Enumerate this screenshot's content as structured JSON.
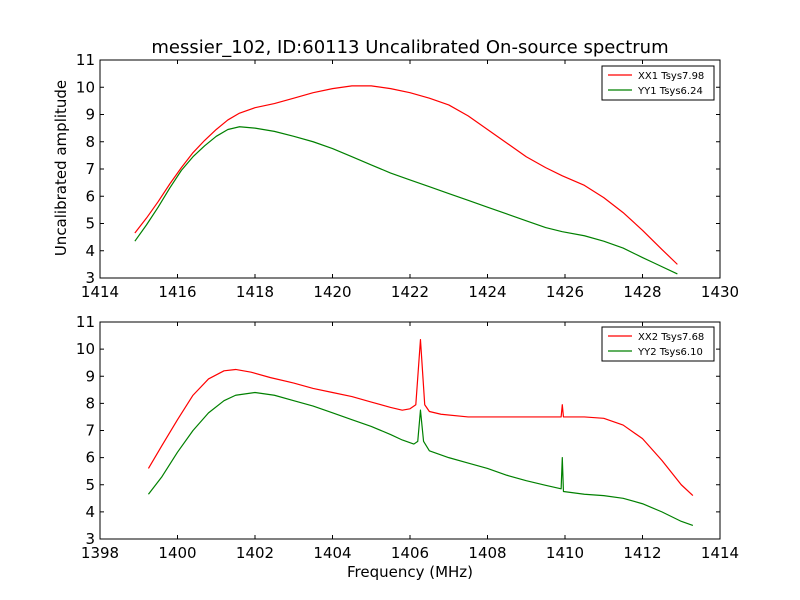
{
  "chart_data": [
    {
      "type": "line",
      "title": "messier_102, ID:60113 Uncalibrated On-source spectrum",
      "xlabel": "",
      "ylabel": "Uncalibrated amplitude",
      "xlim": [
        1414,
        1430
      ],
      "ylim": [
        3,
        11
      ],
      "xticks": [
        "1414",
        "1416",
        "1418",
        "1420",
        "1422",
        "1424",
        "1426",
        "1428",
        "1430"
      ],
      "yticks": [
        "3",
        "4",
        "5",
        "6",
        "7",
        "8",
        "9",
        "10",
        "11"
      ],
      "legend_position": "top-right",
      "grid": false,
      "series": [
        {
          "name": "XX1 Tsys7.98",
          "color": "#ff0000",
          "points": [
            [
              1414.9,
              4.65
            ],
            [
              1415.2,
              5.2
            ],
            [
              1415.5,
              5.8
            ],
            [
              1415.8,
              6.45
            ],
            [
              1416.1,
              7.05
            ],
            [
              1416.4,
              7.6
            ],
            [
              1416.7,
              8.05
            ],
            [
              1417.0,
              8.45
            ],
            [
              1417.3,
              8.8
            ],
            [
              1417.6,
              9.05
            ],
            [
              1418.0,
              9.25
            ],
            [
              1418.5,
              9.4
            ],
            [
              1419.0,
              9.6
            ],
            [
              1419.5,
              9.8
            ],
            [
              1420.0,
              9.95
            ],
            [
              1420.5,
              10.05
            ],
            [
              1421.0,
              10.05
            ],
            [
              1421.5,
              9.95
            ],
            [
              1422.0,
              9.8
            ],
            [
              1422.5,
              9.6
            ],
            [
              1423.0,
              9.35
            ],
            [
              1423.5,
              8.95
            ],
            [
              1424.0,
              8.45
            ],
            [
              1424.5,
              7.95
            ],
            [
              1425.0,
              7.45
            ],
            [
              1425.5,
              7.05
            ],
            [
              1425.93,
              6.75
            ],
            [
              1426.5,
              6.4
            ],
            [
              1427.0,
              5.95
            ],
            [
              1427.5,
              5.4
            ],
            [
              1428.0,
              4.75
            ],
            [
              1428.5,
              4.05
            ],
            [
              1428.9,
              3.5
            ]
          ]
        },
        {
          "name": "YY1 Tsys6.24",
          "color": "#008000",
          "points": [
            [
              1414.9,
              4.35
            ],
            [
              1415.2,
              4.95
            ],
            [
              1415.5,
              5.6
            ],
            [
              1415.8,
              6.3
            ],
            [
              1416.1,
              6.95
            ],
            [
              1416.4,
              7.45
            ],
            [
              1416.7,
              7.85
            ],
            [
              1417.0,
              8.2
            ],
            [
              1417.3,
              8.45
            ],
            [
              1417.6,
              8.55
            ],
            [
              1418.0,
              8.5
            ],
            [
              1418.5,
              8.38
            ],
            [
              1419.0,
              8.2
            ],
            [
              1419.5,
              8.0
            ],
            [
              1420.0,
              7.75
            ],
            [
              1420.5,
              7.45
            ],
            [
              1421.0,
              7.15
            ],
            [
              1421.5,
              6.85
            ],
            [
              1422.0,
              6.6
            ],
            [
              1422.5,
              6.35
            ],
            [
              1423.0,
              6.1
            ],
            [
              1423.5,
              5.85
            ],
            [
              1424.0,
              5.6
            ],
            [
              1424.5,
              5.35
            ],
            [
              1425.0,
              5.1
            ],
            [
              1425.5,
              4.85
            ],
            [
              1425.93,
              4.7
            ],
            [
              1426.5,
              4.55
            ],
            [
              1427.0,
              4.35
            ],
            [
              1427.5,
              4.1
            ],
            [
              1428.0,
              3.75
            ],
            [
              1428.3,
              3.55
            ],
            [
              1428.9,
              3.15
            ]
          ]
        }
      ]
    },
    {
      "type": "line",
      "title": "",
      "xlabel": "Frequency (MHz)",
      "ylabel": "",
      "xlim": [
        1398,
        1414
      ],
      "ylim": [
        3,
        11
      ],
      "xticks": [
        "1398",
        "1400",
        "1402",
        "1404",
        "1406",
        "1408",
        "1410",
        "1412",
        "1414"
      ],
      "yticks": [
        "3",
        "4",
        "5",
        "6",
        "7",
        "8",
        "9",
        "10",
        "11"
      ],
      "legend_position": "top-right",
      "grid": false,
      "series": [
        {
          "name": "XX2 Tsys7.68",
          "color": "#ff0000",
          "points": [
            [
              1399.25,
              5.6
            ],
            [
              1399.6,
              6.45
            ],
            [
              1400.0,
              7.4
            ],
            [
              1400.4,
              8.3
            ],
            [
              1400.8,
              8.9
            ],
            [
              1401.2,
              9.2
            ],
            [
              1401.5,
              9.25
            ],
            [
              1401.9,
              9.15
            ],
            [
              1402.4,
              8.95
            ],
            [
              1403.0,
              8.75
            ],
            [
              1403.5,
              8.55
            ],
            [
              1404.0,
              8.4
            ],
            [
              1404.5,
              8.25
            ],
            [
              1405.0,
              8.05
            ],
            [
              1405.5,
              7.85
            ],
            [
              1405.8,
              7.75
            ],
            [
              1406.0,
              7.8
            ],
            [
              1406.15,
              7.95
            ],
            [
              1406.27,
              10.35
            ],
            [
              1406.38,
              7.95
            ],
            [
              1406.5,
              7.7
            ],
            [
              1406.8,
              7.6
            ],
            [
              1407.5,
              7.5
            ],
            [
              1408.5,
              7.5
            ],
            [
              1409.5,
              7.5
            ],
            [
              1409.9,
              7.5
            ],
            [
              1409.93,
              7.95
            ],
            [
              1409.96,
              7.5
            ],
            [
              1410.5,
              7.5
            ],
            [
              1411.0,
              7.45
            ],
            [
              1411.5,
              7.2
            ],
            [
              1412.0,
              6.7
            ],
            [
              1412.5,
              5.9
            ],
            [
              1413.0,
              5.0
            ],
            [
              1413.3,
              4.6
            ]
          ]
        },
        {
          "name": "YY2 Tsys6.10",
          "color": "#008000",
          "points": [
            [
              1399.25,
              4.65
            ],
            [
              1399.6,
              5.3
            ],
            [
              1400.0,
              6.2
            ],
            [
              1400.4,
              7.0
            ],
            [
              1400.8,
              7.65
            ],
            [
              1401.2,
              8.1
            ],
            [
              1401.5,
              8.3
            ],
            [
              1402.0,
              8.4
            ],
            [
              1402.5,
              8.3
            ],
            [
              1403.0,
              8.1
            ],
            [
              1403.5,
              7.9
            ],
            [
              1404.0,
              7.65
            ],
            [
              1404.5,
              7.4
            ],
            [
              1405.0,
              7.15
            ],
            [
              1405.5,
              6.85
            ],
            [
              1405.8,
              6.65
            ],
            [
              1406.1,
              6.5
            ],
            [
              1406.2,
              6.6
            ],
            [
              1406.27,
              7.75
            ],
            [
              1406.35,
              6.6
            ],
            [
              1406.5,
              6.25
            ],
            [
              1407.0,
              6.0
            ],
            [
              1407.5,
              5.8
            ],
            [
              1408.0,
              5.6
            ],
            [
              1408.5,
              5.35
            ],
            [
              1409.0,
              5.15
            ],
            [
              1409.5,
              4.98
            ],
            [
              1409.9,
              4.85
            ],
            [
              1409.93,
              6.0
            ],
            [
              1409.96,
              4.75
            ],
            [
              1410.5,
              4.65
            ],
            [
              1411.0,
              4.6
            ],
            [
              1411.5,
              4.5
            ],
            [
              1412.0,
              4.3
            ],
            [
              1412.5,
              4.0
            ],
            [
              1413.0,
              3.65
            ],
            [
              1413.3,
              3.5
            ]
          ]
        }
      ]
    }
  ]
}
